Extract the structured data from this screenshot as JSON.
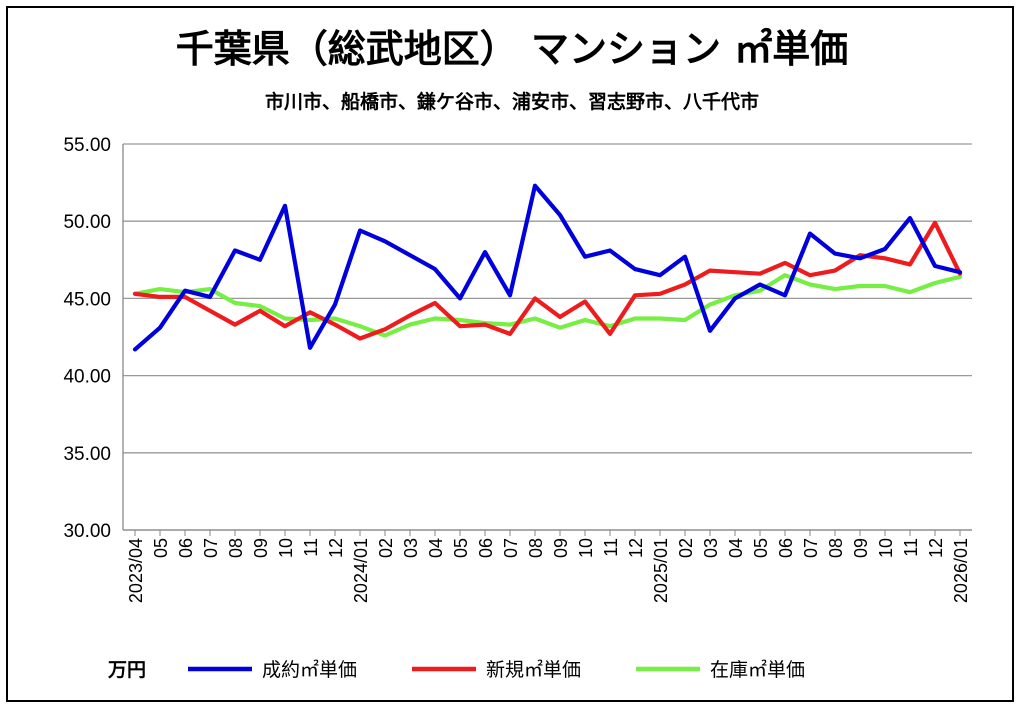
{
  "chart_data": {
    "type": "line",
    "title": "千葉県（総武地区） マンション ㎡単価",
    "subtitle": "市川市、船橋市、鎌ケ谷市、浦安市、習志野市、八千代市",
    "unit_label": "万円",
    "ylim": [
      30,
      55
    ],
    "yticks": [
      "55.00",
      "50.00",
      "45.00",
      "40.00",
      "35.00",
      "30.00"
    ],
    "ytick_values": [
      55,
      50,
      45,
      40,
      35,
      30
    ],
    "x": [
      "2023/04",
      "05",
      "06",
      "07",
      "08",
      "09",
      "10",
      "11",
      "12",
      "2024/01",
      "02",
      "03",
      "04",
      "05",
      "06",
      "07",
      "08",
      "09",
      "10",
      "11",
      "12",
      "2025/01",
      "02",
      "03",
      "04",
      "05",
      "06",
      "07",
      "08",
      "09",
      "10",
      "11",
      "12",
      "2026/01"
    ],
    "grid": true,
    "legend_position": "bottom",
    "series": [
      {
        "name": "成約㎡単価",
        "color": "#0000dd",
        "values": [
          41.7,
          43.1,
          45.5,
          45.1,
          48.1,
          47.5,
          51.0,
          41.8,
          44.6,
          49.4,
          48.7,
          47.8,
          46.9,
          45.0,
          48.0,
          45.2,
          52.3,
          50.4,
          47.7,
          48.1,
          46.9,
          46.5,
          47.7,
          42.9,
          45.0,
          45.9,
          45.2,
          49.2,
          47.9,
          47.6,
          48.2,
          50.2,
          47.1,
          46.7
        ]
      },
      {
        "name": "新規㎡単価",
        "color": "#ee1c1c",
        "values": [
          45.3,
          45.1,
          45.1,
          44.2,
          43.3,
          44.2,
          43.2,
          44.1,
          43.3,
          42.4,
          43.0,
          43.9,
          44.7,
          43.2,
          43.3,
          42.7,
          45.0,
          43.8,
          44.8,
          42.7,
          45.2,
          45.3,
          45.9,
          46.8,
          46.7,
          46.6,
          47.3,
          46.5,
          46.8,
          47.8,
          47.6,
          47.2,
          49.9,
          46.6
        ]
      },
      {
        "name": "在庫㎡単価",
        "color": "#77ee44",
        "values": [
          45.3,
          45.6,
          45.4,
          45.6,
          44.7,
          44.5,
          43.7,
          43.6,
          43.7,
          43.2,
          42.6,
          43.3,
          43.7,
          43.6,
          43.4,
          43.3,
          43.7,
          43.1,
          43.6,
          43.2,
          43.7,
          43.7,
          43.6,
          44.6,
          45.2,
          45.5,
          46.5,
          45.9,
          45.6,
          45.8,
          45.8,
          45.4,
          46.0,
          46.4
        ]
      }
    ]
  }
}
